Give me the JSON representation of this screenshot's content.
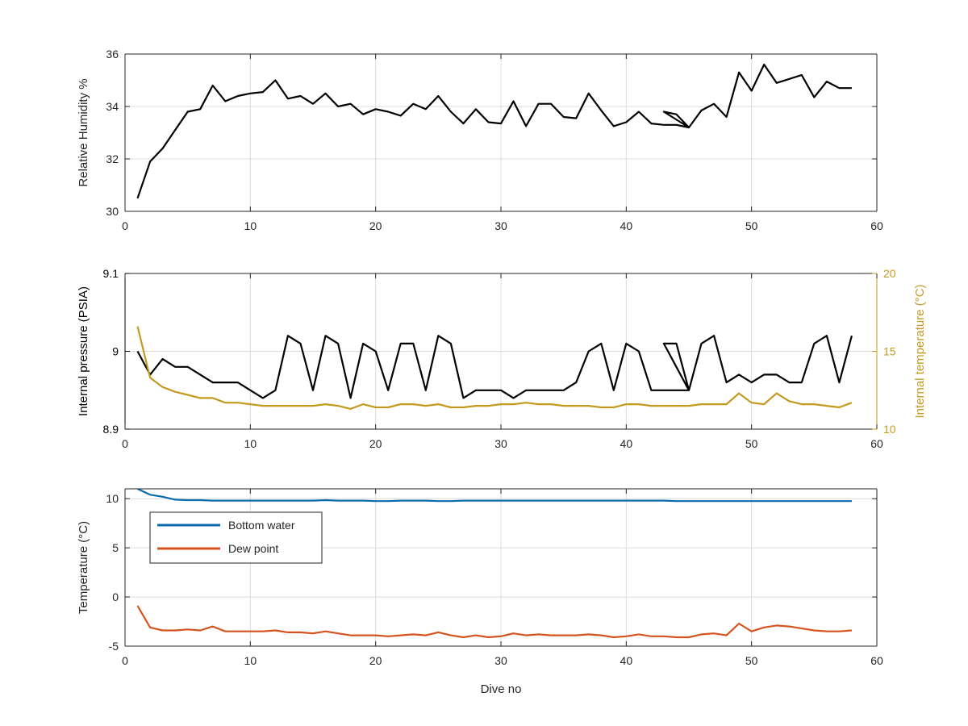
{
  "chart_data": [
    {
      "type": "line",
      "ylabel": "Relative Humidity %",
      "xlabel": "",
      "xlim": [
        0,
        60
      ],
      "ylim": [
        30,
        36
      ],
      "xticks": [
        0,
        10,
        20,
        30,
        40,
        50,
        60
      ],
      "yticks": [
        30,
        32,
        34,
        36
      ],
      "grid": true,
      "series": [
        {
          "color": "#000000",
          "x": [
            1,
            2,
            3,
            4,
            5,
            6,
            7,
            8,
            9,
            10,
            11,
            12,
            13,
            14,
            15,
            16,
            17,
            18,
            19,
            20,
            21,
            22,
            23,
            24,
            25,
            26,
            27,
            28,
            29,
            30,
            31,
            32,
            33,
            34,
            35,
            36,
            37,
            38,
            39,
            40,
            41,
            42,
            43,
            44,
            45,
            43,
            44,
            45,
            46,
            47,
            48,
            49,
            50,
            51,
            52,
            53,
            54,
            55,
            56,
            57,
            58
          ],
          "y": [
            30.5,
            31.9,
            32.4,
            33.1,
            33.8,
            33.9,
            34.8,
            34.2,
            34.4,
            34.5,
            34.55,
            35.0,
            34.3,
            34.4,
            34.1,
            34.5,
            34.0,
            34.1,
            33.7,
            33.9,
            33.8,
            33.65,
            34.1,
            33.9,
            34.4,
            33.8,
            33.35,
            33.9,
            33.4,
            33.35,
            34.2,
            33.25,
            34.1,
            34.1,
            33.6,
            33.55,
            34.5,
            33.85,
            33.25,
            33.4,
            33.8,
            33.35,
            33.3,
            33.3,
            33.2,
            33.8,
            33.7,
            33.2,
            33.85,
            34.1,
            33.6,
            35.3,
            34.6,
            35.6,
            34.9,
            35.05,
            35.2,
            34.35,
            34.95,
            34.7,
            34.7
          ]
        }
      ]
    },
    {
      "type": "line",
      "xlabel": "",
      "xlim": [
        0,
        60
      ],
      "xticks": [
        0,
        10,
        20,
        30,
        40,
        50,
        60
      ],
      "grid": true,
      "left_axis": {
        "ylabel": "Internal pressure (PSIA)",
        "ylim": [
          8.9,
          9.1
        ],
        "yticks": [
          8.9,
          9,
          9.1
        ],
        "ytick_labels": [
          "8.9",
          "9",
          "9.1"
        ],
        "color": "#000000"
      },
      "right_axis": {
        "ylabel": "Internal temperature (°C)",
        "ylim": [
          10,
          20
        ],
        "yticks": [
          10,
          15,
          20
        ],
        "ytick_labels": [
          "10",
          "15",
          "20"
        ],
        "color": "#c49a1e"
      },
      "series": [
        {
          "axis": "left",
          "color": "#000000",
          "x": [
            1,
            2,
            3,
            4,
            5,
            6,
            7,
            8,
            9,
            10,
            11,
            12,
            13,
            14,
            15,
            16,
            17,
            18,
            19,
            20,
            21,
            22,
            23,
            24,
            25,
            26,
            27,
            28,
            29,
            30,
            31,
            32,
            33,
            34,
            35,
            36,
            37,
            38,
            39,
            40,
            41,
            42,
            43,
            44,
            45,
            43,
            44,
            45,
            46,
            47,
            48,
            49,
            50,
            51,
            52,
            53,
            54,
            55,
            56,
            57,
            58
          ],
          "y": [
            9.0,
            8.97,
            8.99,
            8.98,
            8.98,
            8.97,
            8.96,
            8.96,
            8.96,
            8.95,
            8.94,
            8.95,
            9.02,
            9.01,
            8.95,
            9.02,
            9.01,
            8.94,
            9.01,
            9.0,
            8.95,
            9.01,
            9.01,
            8.95,
            9.02,
            9.01,
            8.94,
            8.95,
            8.95,
            8.95,
            8.94,
            8.95,
            8.95,
            8.95,
            8.95,
            8.96,
            9.0,
            9.01,
            8.95,
            9.01,
            9.0,
            8.95,
            8.95,
            8.95,
            8.95,
            9.01,
            9.01,
            8.95,
            9.01,
            9.02,
            8.96,
            8.97,
            8.96,
            8.97,
            8.97,
            8.96,
            8.96,
            9.01,
            9.02,
            8.96,
            9.02
          ]
        },
        {
          "axis": "right",
          "color": "#c49a1e",
          "x": [
            1,
            2,
            3,
            4,
            5,
            6,
            7,
            8,
            9,
            10,
            11,
            12,
            13,
            14,
            15,
            16,
            17,
            18,
            19,
            20,
            21,
            22,
            23,
            24,
            25,
            26,
            27,
            28,
            29,
            30,
            31,
            32,
            33,
            34,
            35,
            36,
            37,
            38,
            39,
            40,
            41,
            42,
            43,
            44,
            45,
            46,
            47,
            48,
            49,
            50,
            51,
            52,
            53,
            54,
            55,
            56,
            57,
            58
          ],
          "y": [
            16.6,
            13.3,
            12.7,
            12.4,
            12.2,
            12.0,
            12.0,
            11.7,
            11.7,
            11.6,
            11.5,
            11.5,
            11.5,
            11.5,
            11.5,
            11.6,
            11.5,
            11.3,
            11.6,
            11.4,
            11.4,
            11.6,
            11.6,
            11.5,
            11.6,
            11.4,
            11.4,
            11.5,
            11.5,
            11.6,
            11.6,
            11.7,
            11.6,
            11.6,
            11.5,
            11.5,
            11.5,
            11.4,
            11.4,
            11.6,
            11.6,
            11.5,
            11.5,
            11.5,
            11.5,
            11.6,
            11.6,
            11.6,
            12.3,
            11.7,
            11.6,
            12.3,
            11.8,
            11.6,
            11.6,
            11.5,
            11.4,
            11.7
          ]
        }
      ]
    },
    {
      "type": "line",
      "ylabel": "Temperature (°C)",
      "xlabel": "Dive no",
      "xlim": [
        0,
        60
      ],
      "ylim": [
        -5,
        11
      ],
      "xticks": [
        0,
        10,
        20,
        30,
        40,
        50,
        60
      ],
      "yticks": [
        -5,
        0,
        5,
        10
      ],
      "grid": true,
      "legend_position": "top-left",
      "series": [
        {
          "name": "Bottom water",
          "color": "#0a6aac",
          "x": [
            1,
            2,
            3,
            4,
            5,
            6,
            7,
            8,
            9,
            10,
            11,
            12,
            13,
            14,
            15,
            16,
            17,
            18,
            19,
            20,
            21,
            22,
            23,
            24,
            25,
            26,
            27,
            28,
            29,
            30,
            31,
            32,
            33,
            34,
            35,
            36,
            37,
            38,
            39,
            40,
            41,
            42,
            43,
            44,
            45,
            46,
            47,
            48,
            49,
            50,
            51,
            52,
            53,
            54,
            55,
            56,
            57,
            58
          ],
          "y": [
            11.0,
            10.4,
            10.2,
            9.9,
            9.85,
            9.85,
            9.8,
            9.8,
            9.8,
            9.8,
            9.8,
            9.8,
            9.8,
            9.8,
            9.8,
            9.85,
            9.8,
            9.8,
            9.8,
            9.75,
            9.75,
            9.8,
            9.8,
            9.8,
            9.75,
            9.75,
            9.8,
            9.8,
            9.8,
            9.8,
            9.8,
            9.8,
            9.8,
            9.8,
            9.8,
            9.8,
            9.8,
            9.8,
            9.8,
            9.8,
            9.8,
            9.8,
            9.8,
            9.75,
            9.75,
            9.75,
            9.75,
            9.75,
            9.75,
            9.75,
            9.75,
            9.75,
            9.75,
            9.75,
            9.75,
            9.75,
            9.75,
            9.75
          ]
        },
        {
          "name": "Dew point",
          "color": "#d4531e",
          "x": [
            1,
            2,
            3,
            4,
            5,
            6,
            7,
            8,
            9,
            10,
            11,
            12,
            13,
            14,
            15,
            16,
            17,
            18,
            19,
            20,
            21,
            22,
            23,
            24,
            25,
            26,
            27,
            28,
            29,
            30,
            31,
            32,
            33,
            34,
            35,
            36,
            37,
            38,
            39,
            40,
            41,
            42,
            43,
            44,
            45,
            46,
            47,
            48,
            49,
            50,
            51,
            52,
            53,
            54,
            55,
            56,
            57,
            58
          ],
          "y": [
            -0.9,
            -3.1,
            -3.4,
            -3.4,
            -3.3,
            -3.4,
            -3.0,
            -3.5,
            -3.5,
            -3.5,
            -3.5,
            -3.4,
            -3.6,
            -3.6,
            -3.7,
            -3.5,
            -3.7,
            -3.9,
            -3.9,
            -3.9,
            -4.0,
            -3.9,
            -3.8,
            -3.9,
            -3.6,
            -3.9,
            -4.1,
            -3.9,
            -4.1,
            -4.0,
            -3.7,
            -3.9,
            -3.8,
            -3.9,
            -3.9,
            -3.9,
            -3.8,
            -3.9,
            -4.1,
            -4.0,
            -3.8,
            -4.0,
            -4.0,
            -4.1,
            -4.1,
            -3.8,
            -3.7,
            -3.9,
            -2.7,
            -3.5,
            -3.1,
            -2.9,
            -3.0,
            -3.2,
            -3.4,
            -3.5,
            -3.5,
            -3.4
          ]
        }
      ]
    }
  ]
}
